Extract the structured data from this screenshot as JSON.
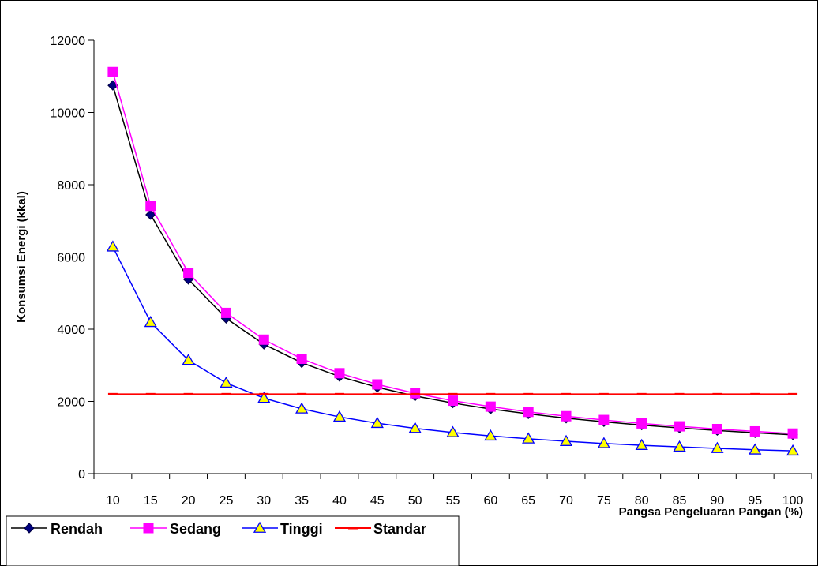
{
  "chart_data": {
    "type": "line",
    "title": "",
    "xlabel": "Pangsa Pengeluaran Pangan (%)",
    "ylabel": "Konsumsi Energi (kkal)",
    "ylim": [
      0,
      12000
    ],
    "yticks": [
      0,
      2000,
      4000,
      6000,
      8000,
      10000,
      12000
    ],
    "x": [
      10,
      15,
      20,
      25,
      30,
      35,
      40,
      45,
      50,
      55,
      60,
      65,
      70,
      75,
      80,
      85,
      90,
      95,
      100
    ],
    "grid": false,
    "legend": "bottom-left",
    "series": [
      {
        "name": "Rendah",
        "color": "#000080",
        "line_color": "#000000",
        "marker": "diamond",
        "values": [
          10750,
          7170,
          5380,
          4300,
          3580,
          3070,
          2690,
          2390,
          2150,
          1955,
          1790,
          1655,
          1535,
          1435,
          1345,
          1265,
          1195,
          1130,
          1075
        ]
      },
      {
        "name": "Sedang",
        "color": "#FF00FF",
        "line_color": "#FF00FF",
        "marker": "square",
        "values": [
          11120,
          7415,
          5560,
          4450,
          3710,
          3180,
          2780,
          2470,
          2225,
          2020,
          1855,
          1710,
          1590,
          1485,
          1390,
          1310,
          1235,
          1170,
          1110
        ]
      },
      {
        "name": "Tinggi",
        "color": "#FFFF00",
        "line_color": "#0000FF",
        "marker": "triangle",
        "values": [
          6280,
          4190,
          3140,
          2510,
          2090,
          1795,
          1570,
          1395,
          1255,
          1140,
          1045,
          965,
          895,
          835,
          785,
          740,
          700,
          660,
          630
        ]
      },
      {
        "name": "Standar",
        "color": "#FF0000",
        "line_color": "#FF0000",
        "marker": "dash",
        "values": [
          2200,
          2200,
          2200,
          2200,
          2200,
          2200,
          2200,
          2200,
          2200,
          2200,
          2200,
          2200,
          2200,
          2200,
          2200,
          2200,
          2200,
          2200,
          2200
        ]
      }
    ]
  }
}
